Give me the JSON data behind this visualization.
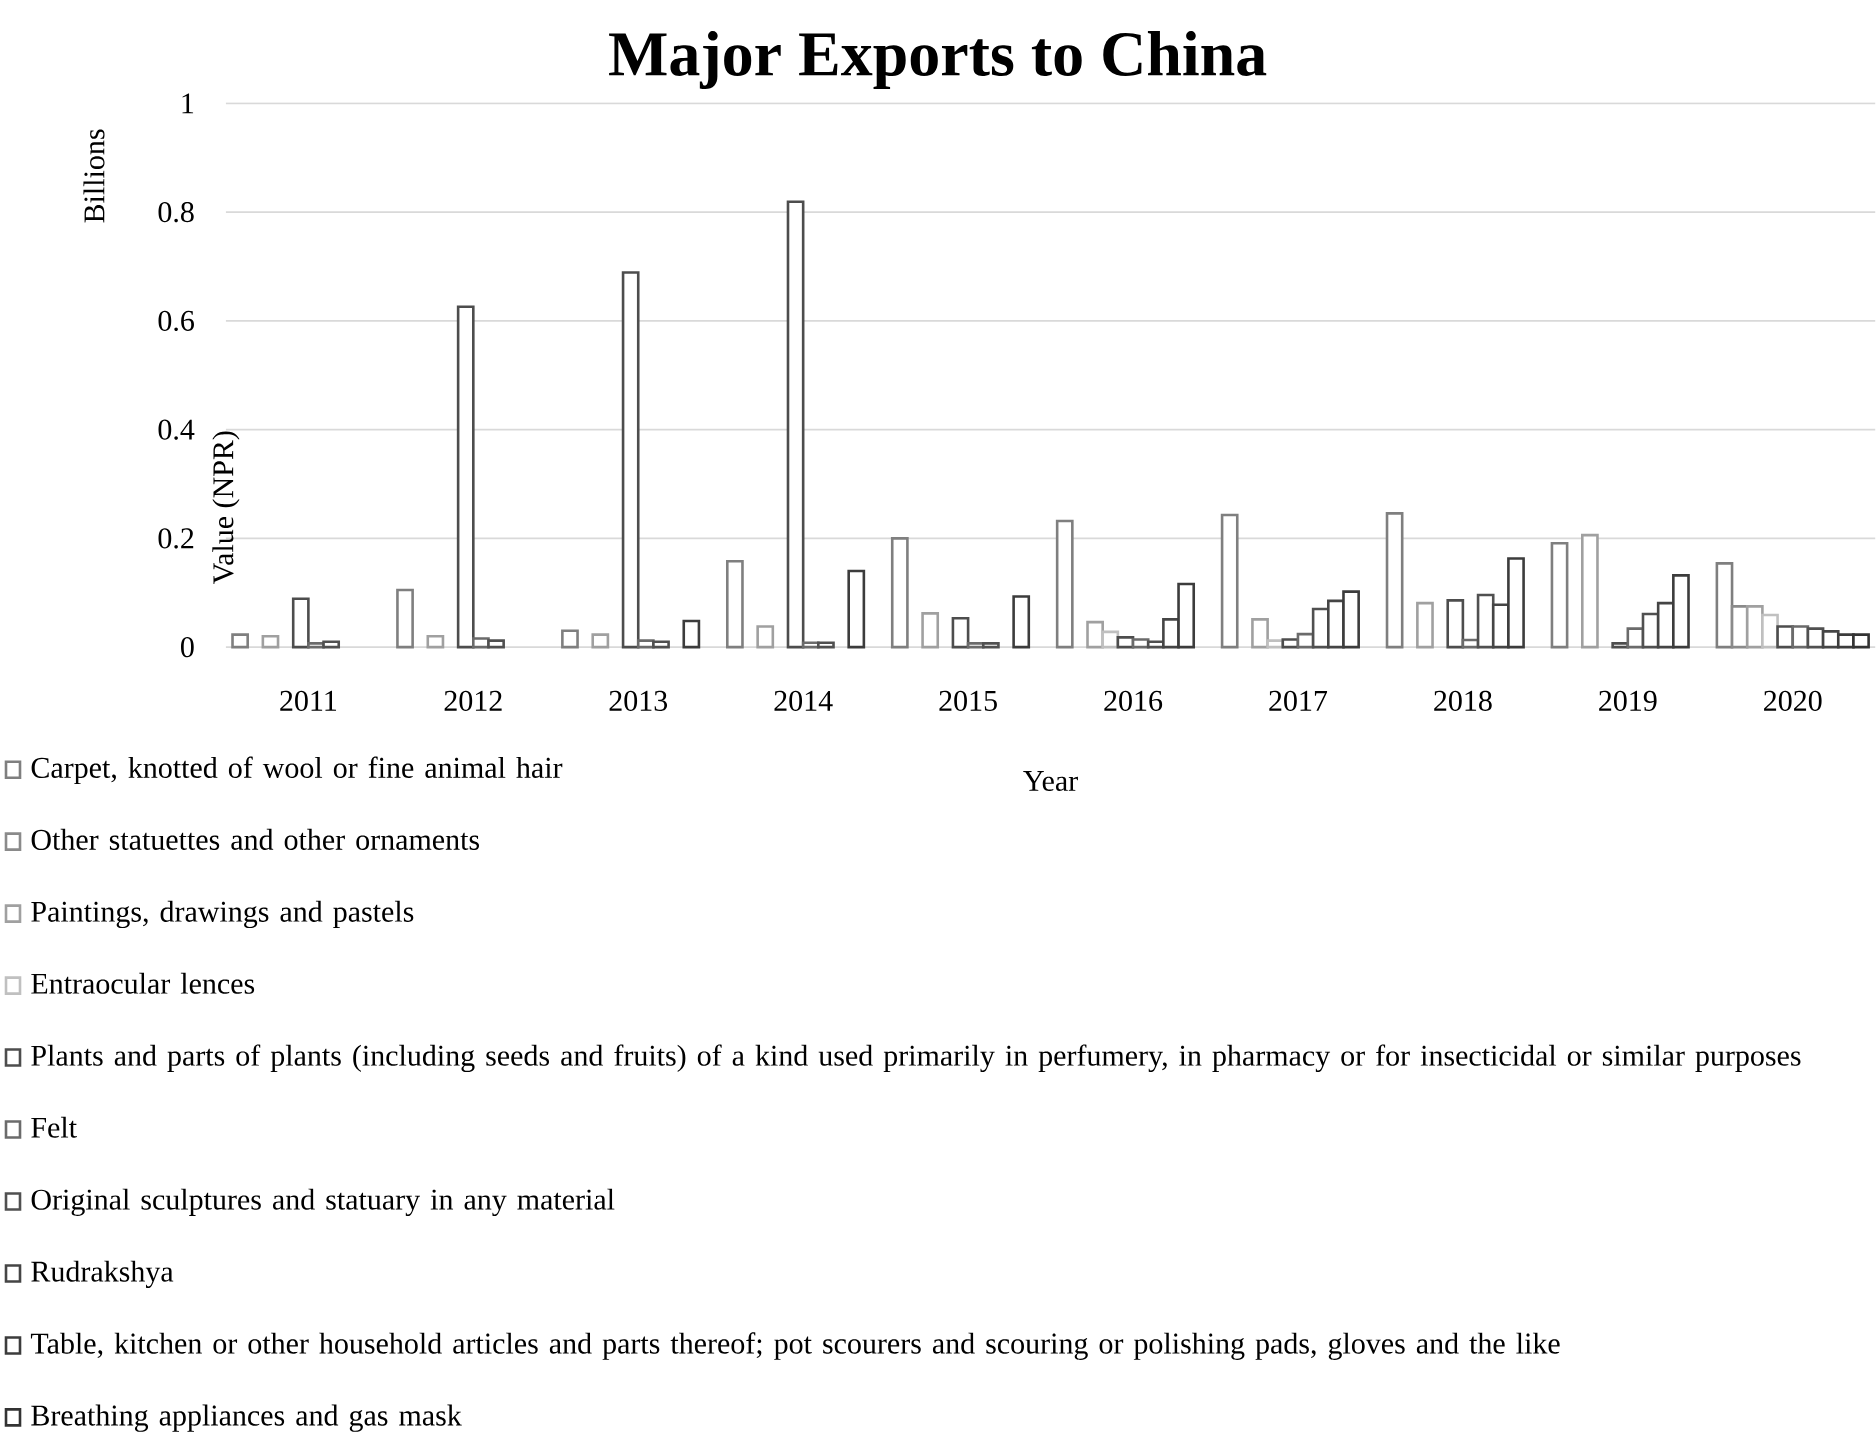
{
  "chart_data": {
    "type": "bar",
    "title": "Major Exports to China",
    "xlabel": "Year",
    "ylabel": "Value (NPR)",
    "annotations": [
      "Billions"
    ],
    "categories": [
      "2011",
      "2012",
      "2013",
      "2014",
      "2015",
      "2016",
      "2017",
      "2018",
      "2019",
      "2020"
    ],
    "series": [
      {
        "name": "Carpet, knotted of wool or fine animal hair",
        "color": "#7f7f7f",
        "values": [
          0.023,
          0.105,
          0.03,
          0.158,
          0.2,
          0.232,
          0.243,
          0.246,
          0.191,
          0.154
        ]
      },
      {
        "name": "Other statuettes and other ornaments",
        "color": "#8a8a8a",
        "values": [
          null,
          null,
          null,
          null,
          null,
          null,
          null,
          null,
          null,
          0.075
        ]
      },
      {
        "name": "Paintings, drawings and pastels",
        "color": "#a0a0a0",
        "values": [
          0.02,
          0.02,
          0.023,
          0.038,
          0.062,
          0.046,
          0.051,
          0.081,
          0.206,
          0.075
        ]
      },
      {
        "name": "Entraocular lences",
        "color": "#c0c0c0",
        "values": [
          null,
          null,
          null,
          null,
          null,
          0.028,
          0.012,
          null,
          null,
          0.059
        ]
      },
      {
        "name": "Plants and parts of plants (including seeds and fruits) of a kind used primarily in perfumery, in pharmacy or for insecticidal or similar purposes",
        "color": "#4d4d4d",
        "values": [
          0.089,
          0.626,
          0.689,
          0.819,
          0.053,
          0.018,
          0.014,
          0.086,
          0.007,
          0.038
        ]
      },
      {
        "name": "Felt",
        "color": "#6b6b6b",
        "values": [
          0.007,
          0.016,
          0.012,
          0.008,
          0.007,
          0.014,
          0.024,
          0.013,
          0.034,
          0.038
        ]
      },
      {
        "name": "Original sculptures and statuary in any material",
        "color": "#505050",
        "values": [
          0.01,
          0.012,
          0.01,
          0.008,
          0.007,
          0.01,
          0.07,
          0.096,
          0.061,
          0.034
        ]
      },
      {
        "name": "Rudrakshya",
        "color": "#454545",
        "values": [
          null,
          null,
          null,
          null,
          null,
          0.051,
          0.085,
          0.078,
          0.081,
          0.029
        ]
      },
      {
        "name": "Table, kitchen or other household articles and parts thereof; pot scourers and scouring or polishing pads, gloves and the like",
        "color": "#3c3c3c",
        "values": [
          null,
          null,
          0.048,
          0.14,
          0.093,
          0.116,
          0.102,
          0.163,
          0.132,
          0.023
        ]
      },
      {
        "name": "Breathing appliances and gas mask",
        "color": "#333333",
        "values": [
          null,
          null,
          null,
          null,
          null,
          null,
          null,
          null,
          null,
          0.023
        ]
      }
    ],
    "ylim": [
      0,
      1
    ],
    "yticks": [
      0,
      0.2,
      0.4,
      0.6,
      0.8,
      1
    ],
    "grid": "y",
    "legend": "bottom"
  }
}
